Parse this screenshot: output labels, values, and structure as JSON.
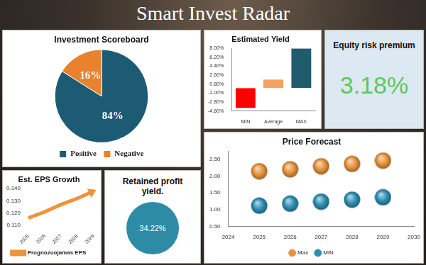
{
  "title": "Smart Invest Radar",
  "indicators": [
    {
      "title": "Equity risk premium",
      "text": "3.18%",
      "color": "#5cc85c"
    },
    {
      "title": "Retained profit yield.",
      "text": "34.22%",
      "color": "#2e8ba6"
    }
  ],
  "chart_data": [
    {
      "type": "pie",
      "title": "Investment Scoreboard",
      "categories": [
        "Positive",
        "Negative"
      ],
      "values": [
        84,
        16
      ],
      "value_labels": [
        "84%",
        "16%"
      ],
      "colors": [
        "#1d5b74",
        "#e8822c"
      ],
      "data_labels": true,
      "legend": "bottom"
    },
    {
      "type": "bar",
      "title": "Estimated Yield",
      "categories": [
        "MIN",
        "Average",
        "MAX"
      ],
      "values": [
        -4,
        1.7,
        8
      ],
      "colors": [
        "#ff0000",
        "#f4a261",
        "#1f5c6e"
      ],
      "ylim": [
        -4.6,
        8
      ],
      "yticks": [
        {
          "value": -4.6,
          "label": "-4.60%"
        },
        {
          "value": -2.8,
          "label": "-2.80%"
        },
        {
          "value": -1,
          "label": "-1.00%"
        },
        {
          "value": 0.8,
          "label": "0.80%"
        },
        {
          "value": 2.6,
          "label": "2.60%"
        },
        {
          "value": 4.4,
          "label": "4.40%"
        },
        {
          "value": 6.2,
          "label": "6.20%"
        },
        {
          "value": 8,
          "label": "8.00%"
        }
      ],
      "grid": false
    },
    {
      "type": "line",
      "title": "Est. EPS Growth",
      "categories": [
        "2025",
        "2026",
        "2027",
        "2028",
        "2029"
      ],
      "series": [
        {
          "name": "Prognozuojamas EPS",
          "color": "#f0923a",
          "values": [
            0.116,
            0.121,
            0.127,
            0.132,
            0.138
          ],
          "marker": "arrow",
          "line_style": "solid"
        }
      ],
      "ylim": [
        0.11,
        0.14
      ],
      "yticks": [
        {
          "value": 0.11,
          "label": "0.110"
        },
        {
          "value": 0.12,
          "label": "0.120"
        },
        {
          "value": 0.13,
          "label": "0.130"
        },
        {
          "value": 0.14,
          "label": "0.140"
        }
      ],
      "grid": false,
      "legend": "bottom"
    },
    {
      "type": "scatter",
      "title": "Price Forecast",
      "x": [
        2025,
        2026,
        2027,
        2028,
        2029
      ],
      "series": [
        {
          "name": "Max",
          "color": "#e8923c",
          "values": [
            2.15,
            2.21,
            2.3,
            2.37,
            2.47
          ],
          "marker": "circle"
        },
        {
          "name": "MIN",
          "color": "#2b8fb3",
          "values": [
            1.12,
            1.18,
            1.24,
            1.3,
            1.37
          ],
          "marker": "circle"
        }
      ],
      "xlim": [
        2024,
        2030
      ],
      "xticks": [
        2024,
        2025,
        2026,
        2027,
        2028,
        2029,
        2030
      ],
      "ylim": [
        0.5,
        2.75
      ],
      "yticks": [
        {
          "value": 0.5,
          "label": "0.50"
        },
        {
          "value": 1,
          "label": "1.00"
        },
        {
          "value": 1.5,
          "label": "1.50"
        },
        {
          "value": 2,
          "label": "2.00"
        },
        {
          "value": 2.5,
          "label": "2.50"
        }
      ],
      "grid": false,
      "legend": "bottom"
    }
  ]
}
